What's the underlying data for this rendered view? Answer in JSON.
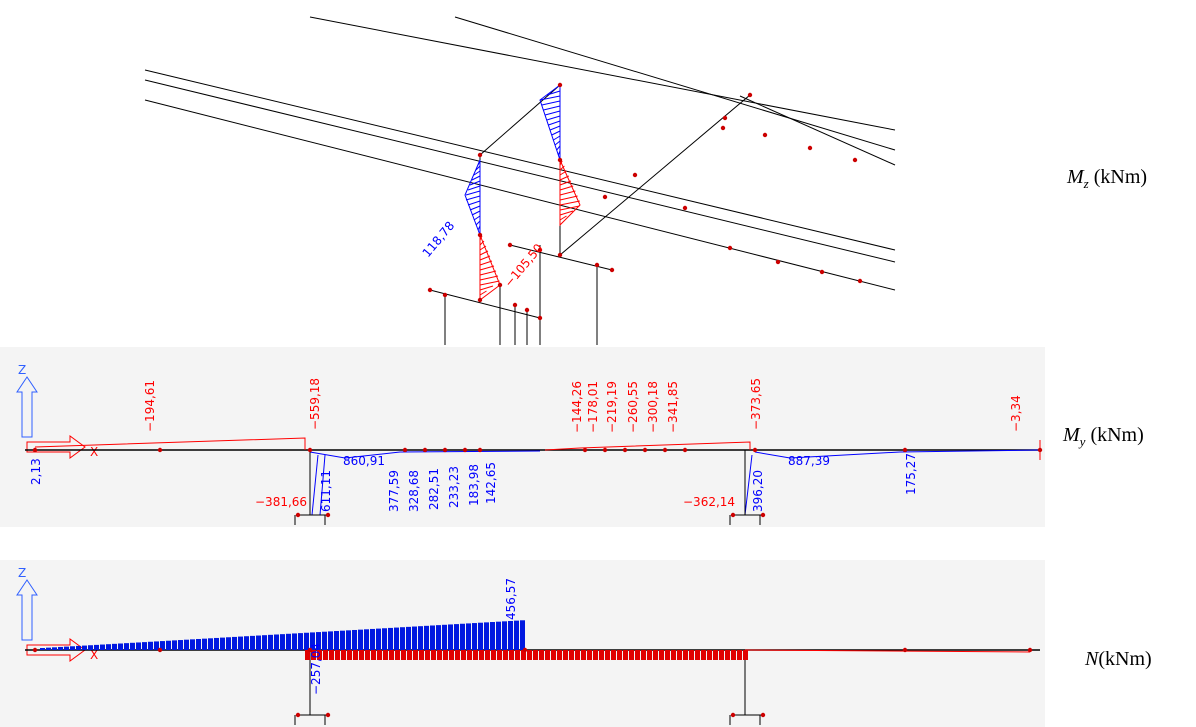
{
  "panels": [
    {
      "symbol": "M",
      "subscript": "z",
      "unit": "(kNm)",
      "labels": [
        "118,78",
        "−105,50"
      ]
    },
    {
      "symbol": "M",
      "subscript": "y",
      "unit": "(kNm)",
      "axis_z": "Z",
      "axis_x": "X",
      "labels": [
        "−194,61",
        "−559,18",
        "−144,26",
        "−178,01",
        "−219,19",
        "−260,55",
        "−300,18",
        "−341,85",
        "−373,65",
        "−3,34",
        "2,13",
        "611,11",
        "860,91",
        "377,59",
        "328,68",
        "282,51",
        "233,23",
        "183,98",
        "142,65",
        "−381,66",
        "−362,14",
        "396,20",
        "887,39",
        "175,27"
      ]
    },
    {
      "symbol": "N",
      "subscript": "",
      "unit": "(kNm)",
      "axis_z": "Z",
      "axis_x": "X",
      "labels": [
        "456,57",
        "−257,04"
      ]
    }
  ]
}
